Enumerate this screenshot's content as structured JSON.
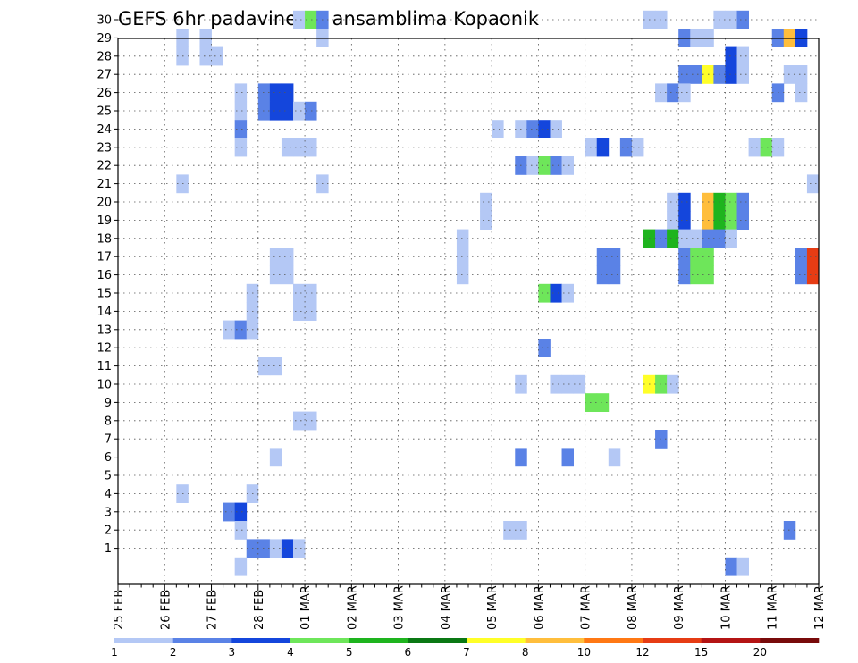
{
  "chart_data": {
    "type": "heatmap",
    "title": "GEFS 6hr padavine po ansamblima Kopaonik",
    "xlabel": "",
    "ylabel": "",
    "y_ticks": [
      "1",
      "2",
      "3",
      "4",
      "5",
      "6",
      "7",
      "8",
      "9",
      "10",
      "11",
      "12",
      "13",
      "14",
      "15",
      "16",
      "17",
      "18",
      "19",
      "20",
      "21",
      "22",
      "23",
      "24",
      "25",
      "26",
      "27",
      "28",
      "29",
      "30"
    ],
    "x_ticks": [
      "25 FEB",
      "26 FEB",
      "27 FEB",
      "28 FEB",
      "01 MAR",
      "02 MAR",
      "03 MAR",
      "04 MAR",
      "05 MAR",
      "06 MAR",
      "07 MAR",
      "08 MAR",
      "09 MAR",
      "10 MAR",
      "11 MAR",
      "12 MAR"
    ],
    "x_range_steps": [
      0,
      60
    ],
    "steps_per_day": 4,
    "grid": true,
    "colorbar": {
      "levels": [
        1,
        2,
        3,
        4,
        5,
        6,
        7,
        8,
        10,
        12,
        15,
        20
      ],
      "colors": [
        "#b4c8f5",
        "#5a82e6",
        "#1446dc",
        "#6ee65a",
        "#1eb41e",
        "#0a7814",
        "#ffff28",
        "#ffbe3c",
        "#ff7814",
        "#e63c14",
        "#b41414",
        "#780a0a"
      ]
    },
    "cells_format": "ensemble member, 6h step from 25 FEB 00Z, precipitation (mm)",
    "cells": [
      [
        30,
        15,
        1.5
      ],
      [
        30,
        16,
        4.5
      ],
      [
        30,
        17,
        2.5
      ],
      [
        30,
        45,
        1.5
      ],
      [
        30,
        46,
        1.5
      ],
      [
        30,
        51,
        1.5
      ],
      [
        30,
        52,
        1.5
      ],
      [
        30,
        53,
        2.5
      ],
      [
        29,
        5,
        1.5
      ],
      [
        29,
        7,
        1.5
      ],
      [
        29,
        17,
        1.5
      ],
      [
        29,
        48,
        2.5
      ],
      [
        29,
        49,
        1.5
      ],
      [
        29,
        50,
        1.5
      ],
      [
        29,
        56,
        2.5
      ],
      [
        29,
        57,
        9
      ],
      [
        29,
        58,
        3.5
      ],
      [
        28,
        5,
        1.5
      ],
      [
        28,
        7,
        1.5
      ],
      [
        28,
        8,
        1.5
      ],
      [
        28,
        52,
        3.5
      ],
      [
        28,
        53,
        1.5
      ],
      [
        27,
        48,
        2.5
      ],
      [
        27,
        49,
        2.5
      ],
      [
        27,
        50,
        7.5
      ],
      [
        27,
        51,
        2.5
      ],
      [
        27,
        52,
        3.5
      ],
      [
        27,
        53,
        1.5
      ],
      [
        27,
        57,
        1.5
      ],
      [
        27,
        58,
        1.5
      ],
      [
        26,
        10,
        1.5
      ],
      [
        26,
        12,
        2.5
      ],
      [
        26,
        13,
        3.5
      ],
      [
        26,
        14,
        3.5
      ],
      [
        26,
        46,
        1.5
      ],
      [
        26,
        47,
        2.5
      ],
      [
        26,
        48,
        1.5
      ],
      [
        26,
        56,
        2.5
      ],
      [
        26,
        58,
        1.5
      ],
      [
        25,
        10,
        1.5
      ],
      [
        25,
        12,
        2.5
      ],
      [
        25,
        13,
        3.5
      ],
      [
        25,
        14,
        3.5
      ],
      [
        25,
        15,
        1.5
      ],
      [
        25,
        16,
        2.5
      ],
      [
        24,
        10,
        2.5
      ],
      [
        24,
        32,
        1.5
      ],
      [
        24,
        34,
        1.5
      ],
      [
        24,
        35,
        2.5
      ],
      [
        24,
        36,
        3.5
      ],
      [
        24,
        37,
        1.5
      ],
      [
        23,
        10,
        1.5
      ],
      [
        23,
        14,
        1.5
      ],
      [
        23,
        15,
        1.5
      ],
      [
        23,
        16,
        1.5
      ],
      [
        23,
        40,
        1.5
      ],
      [
        23,
        41,
        3.5
      ],
      [
        23,
        43,
        2.5
      ],
      [
        23,
        44,
        1.5
      ],
      [
        23,
        54,
        1.5
      ],
      [
        23,
        55,
        4.5
      ],
      [
        23,
        56,
        1.5
      ],
      [
        22,
        34,
        2.5
      ],
      [
        22,
        35,
        1.5
      ],
      [
        22,
        36,
        4.5
      ],
      [
        22,
        37,
        2.5
      ],
      [
        22,
        38,
        1.5
      ],
      [
        21,
        5,
        1.5
      ],
      [
        21,
        17,
        1.5
      ],
      [
        21,
        59,
        1.5
      ],
      [
        20,
        31,
        1.5
      ],
      [
        20,
        47,
        1.5
      ],
      [
        20,
        48,
        3.5
      ],
      [
        20,
        50,
        9
      ],
      [
        20,
        51,
        5.5
      ],
      [
        20,
        52,
        4.5
      ],
      [
        20,
        53,
        2.5
      ],
      [
        19,
        31,
        1.5
      ],
      [
        19,
        47,
        1.5
      ],
      [
        19,
        48,
        3.5
      ],
      [
        19,
        50,
        9
      ],
      [
        19,
        51,
        5.5
      ],
      [
        19,
        52,
        4.5
      ],
      [
        19,
        53,
        2.5
      ],
      [
        18,
        29,
        1.5
      ],
      [
        18,
        45,
        5.5
      ],
      [
        18,
        46,
        2.5
      ],
      [
        18,
        47,
        5.5
      ],
      [
        18,
        48,
        1.5
      ],
      [
        18,
        49,
        1.5
      ],
      [
        18,
        50,
        2.5
      ],
      [
        18,
        51,
        2.5
      ],
      [
        18,
        52,
        1.5
      ],
      [
        17,
        13,
        1.5
      ],
      [
        17,
        14,
        1.5
      ],
      [
        17,
        29,
        1.5
      ],
      [
        17,
        41,
        2.5
      ],
      [
        17,
        42,
        2.5
      ],
      [
        17,
        48,
        2.5
      ],
      [
        17,
        49,
        4.5
      ],
      [
        17,
        50,
        4.5
      ],
      [
        17,
        58,
        2.5
      ],
      [
        17,
        59,
        13
      ],
      [
        16,
        13,
        1.5
      ],
      [
        16,
        14,
        1.5
      ],
      [
        16,
        29,
        1.5
      ],
      [
        16,
        41,
        2.5
      ],
      [
        16,
        42,
        2.5
      ],
      [
        16,
        48,
        2.5
      ],
      [
        16,
        49,
        4.5
      ],
      [
        16,
        50,
        4.5
      ],
      [
        16,
        58,
        2.5
      ],
      [
        16,
        59,
        13
      ],
      [
        15,
        11,
        1.5
      ],
      [
        15,
        15,
        1.5
      ],
      [
        15,
        16,
        1.5
      ],
      [
        15,
        36,
        4.5
      ],
      [
        15,
        37,
        3.5
      ],
      [
        15,
        38,
        1.5
      ],
      [
        14,
        11,
        1.5
      ],
      [
        14,
        15,
        1.5
      ],
      [
        14,
        16,
        1.5
      ],
      [
        13,
        9,
        1.5
      ],
      [
        13,
        10,
        2.5
      ],
      [
        13,
        11,
        1.5
      ],
      [
        12,
        36,
        2.5
      ],
      [
        11,
        12,
        1.5
      ],
      [
        11,
        13,
        1.5
      ],
      [
        10,
        34,
        1.5
      ],
      [
        10,
        37,
        1.5
      ],
      [
        10,
        38,
        1.5
      ],
      [
        10,
        39,
        1.5
      ],
      [
        10,
        45,
        7.5
      ],
      [
        10,
        46,
        4.5
      ],
      [
        10,
        47,
        1.5
      ],
      [
        9,
        40,
        4.5
      ],
      [
        9,
        41,
        4.5
      ],
      [
        8,
        15,
        1.5
      ],
      [
        8,
        16,
        1.5
      ],
      [
        7,
        46,
        2.5
      ],
      [
        6,
        13,
        1.5
      ],
      [
        6,
        34,
        2.5
      ],
      [
        6,
        38,
        2.5
      ],
      [
        6,
        42,
        1.5
      ],
      [
        4,
        5,
        1.5
      ],
      [
        4,
        11,
        1.5
      ],
      [
        3,
        9,
        2.5
      ],
      [
        3,
        10,
        3.5
      ],
      [
        2,
        10,
        1.5
      ],
      [
        2,
        33,
        1.5
      ],
      [
        2,
        34,
        1.5
      ],
      [
        2,
        57,
        2.5
      ],
      [
        1,
        11,
        2.5
      ],
      [
        1,
        12,
        2.5
      ],
      [
        1,
        13,
        1.5
      ],
      [
        1,
        14,
        3.5
      ],
      [
        1,
        15,
        1.5
      ],
      [
        0,
        10,
        1.5
      ],
      [
        0,
        52,
        2.5
      ],
      [
        0,
        53,
        1.5
      ]
    ]
  }
}
